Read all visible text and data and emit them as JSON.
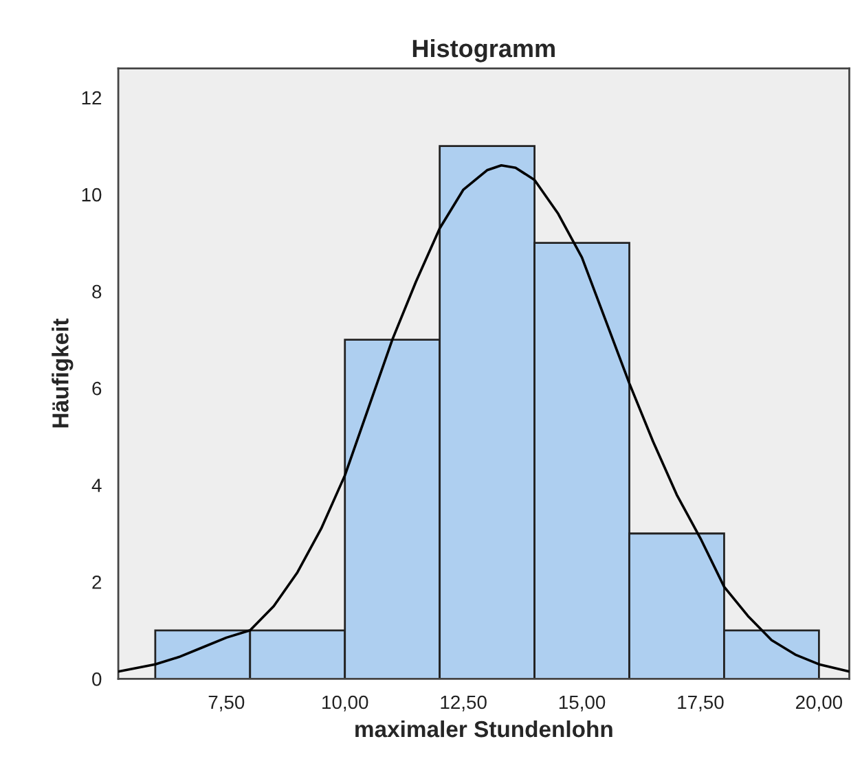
{
  "chart_data": {
    "type": "histogram",
    "title": "Histogramm",
    "xlabel": "maximaler Stundenlohn",
    "ylabel": "Häufigkeit",
    "bins": [
      6,
      8,
      10,
      12,
      14,
      16,
      18,
      20
    ],
    "series": [
      {
        "color": "#aecff0",
        "values": [
          1,
          1,
          7,
          11,
          9,
          3,
          1
        ]
      },
      {
        "type": "line",
        "color": "#000000",
        "x": [
          5.22,
          6,
          6.5,
          7,
          7.5,
          8,
          8.5,
          9,
          9.5,
          10,
          10.5,
          11,
          11.5,
          12,
          12.5,
          13,
          13.3,
          13.6,
          14,
          14.5,
          15,
          15.5,
          16,
          16.5,
          17,
          17.5,
          18,
          18.5,
          19,
          19.5,
          20,
          20.64
        ],
        "values": [
          0.15,
          0.3,
          0.45,
          0.65,
          0.85,
          1.0,
          1.5,
          2.2,
          3.1,
          4.2,
          5.6,
          7.0,
          8.2,
          9.3,
          10.1,
          10.5,
          10.6,
          10.55,
          10.3,
          9.6,
          8.7,
          7.4,
          6.1,
          4.9,
          3.8,
          2.9,
          1.9,
          1.3,
          0.8,
          0.5,
          0.3,
          0.15
        ]
      }
    ],
    "xlim": [
      5.22,
      20.64
    ],
    "ylim": [
      0,
      12.6
    ],
    "xticks": [
      {
        "value": 7.5,
        "label": "7,50"
      },
      {
        "value": 10,
        "label": "10,00"
      },
      {
        "value": 12.5,
        "label": "12,50"
      },
      {
        "value": 15,
        "label": "15,00"
      },
      {
        "value": 17.5,
        "label": "17,50"
      },
      {
        "value": 20,
        "label": "20,00"
      }
    ],
    "yticks": [
      0,
      2,
      4,
      6,
      8,
      10,
      12
    ],
    "grid": false,
    "legend": false
  }
}
